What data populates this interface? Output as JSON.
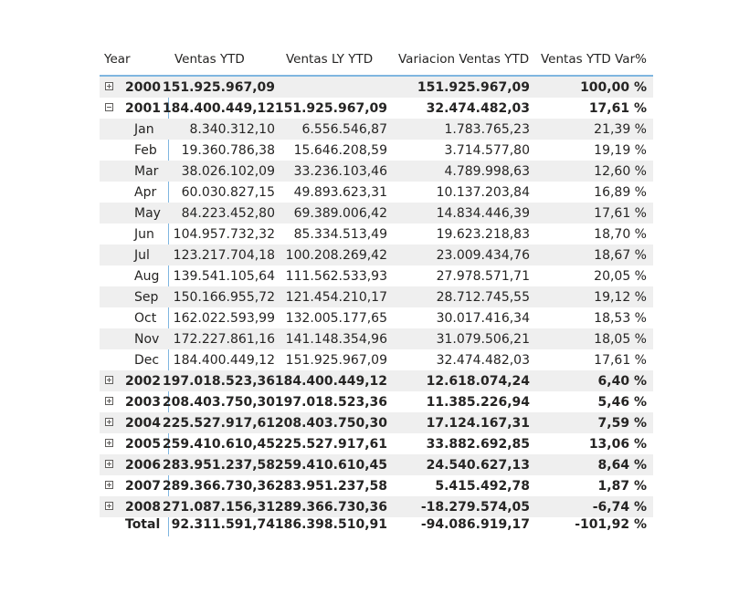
{
  "headers": {
    "year": "Year",
    "ventas_ytd": "Ventas YTD",
    "ventas_ly_ytd": "Ventas LY YTD",
    "variacion": "Variacion Ventas YTD",
    "var_pct": "Ventas YTD Var%"
  },
  "rows": [
    {
      "label": "2000",
      "level": "year",
      "state": "collapsed",
      "v1": "151.925.967,09",
      "v2": "",
      "v3": "151.925.967,09",
      "v4": "100,00 %"
    },
    {
      "label": "2001",
      "level": "year",
      "state": "expanded",
      "v1": "184.400.449,12",
      "v2": "151.925.967,09",
      "v3": "32.474.482,03",
      "v4": "17,61 %"
    },
    {
      "label": "Jan",
      "level": "month",
      "v1": "8.340.312,10",
      "v2": "6.556.546,87",
      "v3": "1.783.765,23",
      "v4": "21,39 %"
    },
    {
      "label": "Feb",
      "level": "month",
      "v1": "19.360.786,38",
      "v2": "15.646.208,59",
      "v3": "3.714.577,80",
      "v4": "19,19 %"
    },
    {
      "label": "Mar",
      "level": "month",
      "v1": "38.026.102,09",
      "v2": "33.236.103,46",
      "v3": "4.789.998,63",
      "v4": "12,60 %"
    },
    {
      "label": "Apr",
      "level": "month",
      "v1": "60.030.827,15",
      "v2": "49.893.623,31",
      "v3": "10.137.203,84",
      "v4": "16,89 %"
    },
    {
      "label": "May",
      "level": "month",
      "v1": "84.223.452,80",
      "v2": "69.389.006,42",
      "v3": "14.834.446,39",
      "v4": "17,61 %"
    },
    {
      "label": "Jun",
      "level": "month",
      "v1": "104.957.732,32",
      "v2": "85.334.513,49",
      "v3": "19.623.218,83",
      "v4": "18,70 %"
    },
    {
      "label": "Jul",
      "level": "month",
      "v1": "123.217.704,18",
      "v2": "100.208.269,42",
      "v3": "23.009.434,76",
      "v4": "18,67 %"
    },
    {
      "label": "Aug",
      "level": "month",
      "v1": "139.541.105,64",
      "v2": "111.562.533,93",
      "v3": "27.978.571,71",
      "v4": "20,05 %"
    },
    {
      "label": "Sep",
      "level": "month",
      "v1": "150.166.955,72",
      "v2": "121.454.210,17",
      "v3": "28.712.745,55",
      "v4": "19,12 %"
    },
    {
      "label": "Oct",
      "level": "month",
      "v1": "162.022.593,99",
      "v2": "132.005.177,65",
      "v3": "30.017.416,34",
      "v4": "18,53 %"
    },
    {
      "label": "Nov",
      "level": "month",
      "v1": "172.227.861,16",
      "v2": "141.148.354,96",
      "v3": "31.079.506,21",
      "v4": "18,05 %"
    },
    {
      "label": "Dec",
      "level": "month",
      "v1": "184.400.449,12",
      "v2": "151.925.967,09",
      "v3": "32.474.482,03",
      "v4": "17,61 %"
    },
    {
      "label": "2002",
      "level": "year",
      "state": "collapsed",
      "v1": "197.018.523,36",
      "v2": "184.400.449,12",
      "v3": "12.618.074,24",
      "v4": "6,40 %"
    },
    {
      "label": "2003",
      "level": "year",
      "state": "collapsed",
      "v1": "208.403.750,30",
      "v2": "197.018.523,36",
      "v3": "11.385.226,94",
      "v4": "5,46 %"
    },
    {
      "label": "2004",
      "level": "year",
      "state": "collapsed",
      "v1": "225.527.917,61",
      "v2": "208.403.750,30",
      "v3": "17.124.167,31",
      "v4": "7,59 %"
    },
    {
      "label": "2005",
      "level": "year",
      "state": "collapsed",
      "v1": "259.410.610,45",
      "v2": "225.527.917,61",
      "v3": "33.882.692,85",
      "v4": "13,06 %"
    },
    {
      "label": "2006",
      "level": "year",
      "state": "collapsed",
      "v1": "283.951.237,58",
      "v2": "259.410.610,45",
      "v3": "24.540.627,13",
      "v4": "8,64 %"
    },
    {
      "label": "2007",
      "level": "year",
      "state": "collapsed",
      "v1": "289.366.730,36",
      "v2": "283.951.237,58",
      "v3": "5.415.492,78",
      "v4": "1,87 %"
    },
    {
      "label": "2008",
      "level": "year",
      "state": "collapsed",
      "v1": "271.087.156,31",
      "v2": "289.366.730,36",
      "v3": "-18.279.574,05",
      "v4": "-6,74 %"
    }
  ],
  "total": {
    "label": "Total",
    "v1": "92.311.591,74",
    "v2": "186.398.510,91",
    "v3": "-94.086.919,17",
    "v4": "-101,92 %"
  },
  "colors": {
    "accent_line": "#7fb6e0",
    "stripe": "#efefef",
    "text": "#252423"
  }
}
